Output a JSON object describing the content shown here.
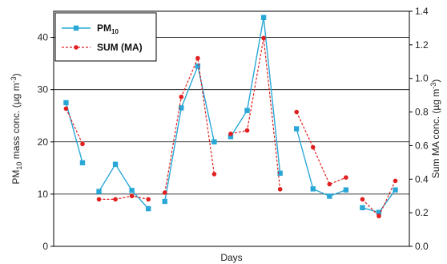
{
  "chart_data": {
    "type": "line",
    "xlabel": "Days",
    "ylabel": "PM",
    "ylabel_sub": "10",
    "ylabel_rest": " mass conc. (µg m",
    "ylabel_sup": "-3",
    "ylabel_end": ")",
    "y2label": "Sum MA conc. (µg m",
    "y2label_sup": "-3",
    "y2label_end": ")",
    "ylim": [
      0,
      45
    ],
    "yticks": [
      "0",
      "10",
      "20",
      "30",
      "40"
    ],
    "y2lim": [
      0,
      1.4
    ],
    "y2ticks": [
      "0.0",
      "0.2",
      "0.4",
      "0.6",
      "0.8",
      "1.0",
      "1.2",
      "1.4"
    ],
    "grid": "horizontal",
    "legend_position": "top-left",
    "series": [
      {
        "name": "PM",
        "name_sub": "10",
        "axis": "left",
        "color": "#29a8d8",
        "marker": "square",
        "line": "solid",
        "segments": [
          [
            [
              1,
              27.5
            ],
            [
              2,
              16.0
            ]
          ],
          [
            [
              3,
              10.5
            ],
            [
              4,
              15.7
            ],
            [
              5,
              10.7
            ],
            [
              6,
              7.2
            ]
          ],
          [
            [
              7,
              8.6
            ],
            [
              8,
              26.5
            ],
            [
              9,
              34.5
            ],
            [
              10,
              20.0
            ]
          ],
          [
            [
              11,
              21.0
            ],
            [
              12,
              26.0
            ],
            [
              13,
              43.8
            ],
            [
              14,
              14.0
            ]
          ],
          [
            [
              15,
              22.5
            ],
            [
              16,
              11.0
            ],
            [
              17,
              9.6
            ],
            [
              18,
              10.8
            ]
          ],
          [
            [
              19,
              7.4
            ],
            [
              20,
              6.5
            ],
            [
              21,
              10.8
            ]
          ]
        ]
      },
      {
        "name": "SUM (MA)",
        "axis": "right",
        "color": "#e02020",
        "marker": "circle",
        "line": "dashed",
        "segments": [
          [
            [
              1,
              0.82
            ],
            [
              2,
              0.61
            ]
          ],
          [
            [
              3,
              0.28
            ],
            [
              4,
              0.28
            ],
            [
              5,
              0.3
            ],
            [
              6,
              0.28
            ]
          ],
          [
            [
              7,
              0.32
            ],
            [
              8,
              0.89
            ],
            [
              9,
              1.12
            ],
            [
              10,
              0.43
            ]
          ],
          [
            [
              11,
              0.67
            ],
            [
              12,
              0.69
            ],
            [
              13,
              1.24
            ],
            [
              14,
              0.34
            ]
          ],
          [
            [
              15,
              0.8
            ],
            [
              16,
              0.59
            ],
            [
              17,
              0.37
            ],
            [
              18,
              0.41
            ]
          ],
          [
            [
              19,
              0.28
            ],
            [
              20,
              0.18
            ],
            [
              21,
              0.39
            ]
          ]
        ]
      }
    ]
  }
}
